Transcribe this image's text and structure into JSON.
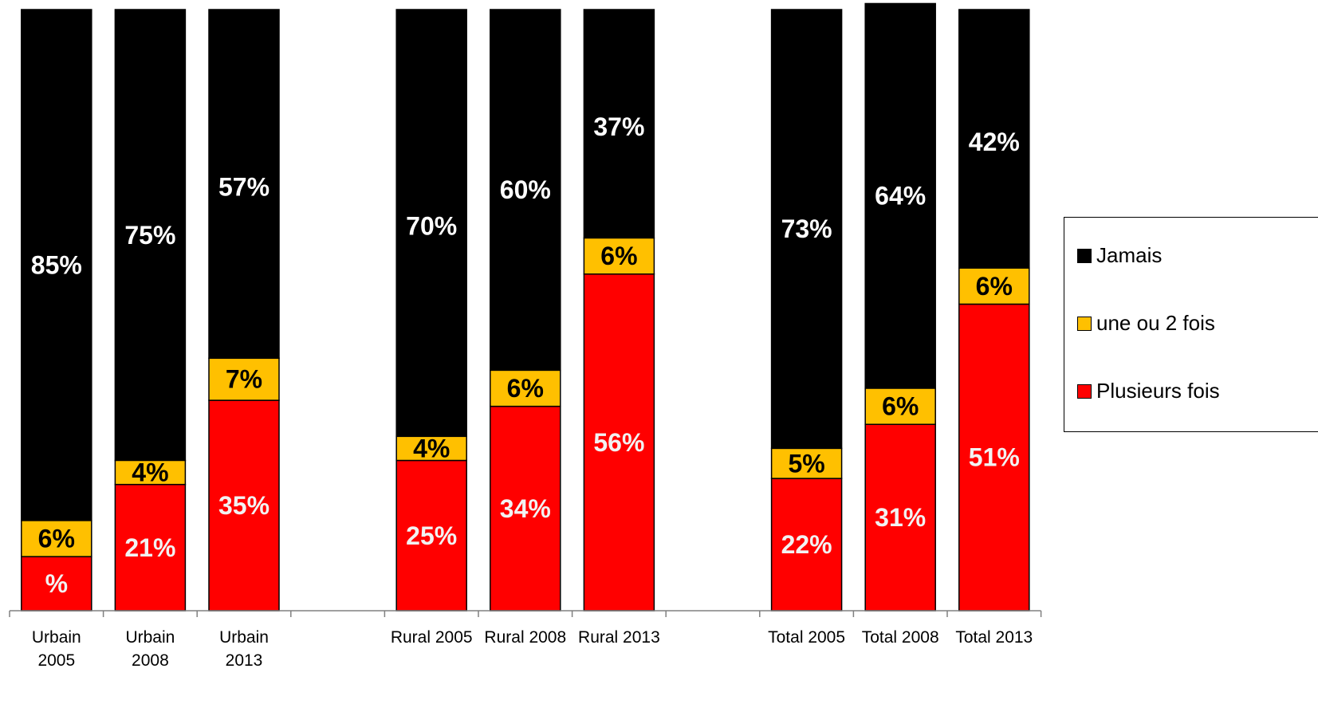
{
  "chart_data": {
    "type": "bar",
    "stacked": true,
    "title": "",
    "xlabel": "",
    "ylabel": "",
    "ylim": [
      0,
      100
    ],
    "grid": false,
    "legend_position": "right",
    "groups": [
      {
        "categories": [
          {
            "label_lines": [
              "Urbain",
              "2005"
            ],
            "values": [
              9,
              6,
              85
            ],
            "labels": [
              "%",
              "6%",
              "85%"
            ]
          },
          {
            "label_lines": [
              "Urbain",
              "2008"
            ],
            "values": [
              21,
              4,
              75
            ],
            "labels": [
              "21%",
              "4%",
              "75%"
            ]
          },
          {
            "label_lines": [
              "Urbain",
              "2013"
            ],
            "values": [
              35,
              7,
              57
            ],
            "labels": [
              "35%",
              "7%",
              "57%"
            ]
          }
        ]
      },
      {
        "categories": [
          {
            "label_lines": [
              "Rural 2005"
            ],
            "values": [
              25,
              4,
              70
            ],
            "labels": [
              "25%",
              "4%",
              "70%"
            ]
          },
          {
            "label_lines": [
              "Rural 2008"
            ],
            "values": [
              34,
              6,
              60
            ],
            "labels": [
              "34%",
              "6%",
              "60%"
            ]
          },
          {
            "label_lines": [
              "Rural 2013"
            ],
            "values": [
              56,
              6,
              37
            ],
            "labels": [
              "56%",
              "6%",
              "37%"
            ]
          }
        ]
      },
      {
        "categories": [
          {
            "label_lines": [
              "Total 2005"
            ],
            "values": [
              22,
              5,
              73
            ],
            "labels": [
              "22%",
              "5%",
              "73%"
            ]
          },
          {
            "label_lines": [
              "Total 2008"
            ],
            "values": [
              31,
              6,
              64
            ],
            "labels": [
              "31%",
              "6%",
              "64%"
            ]
          },
          {
            "label_lines": [
              "Total 2013"
            ],
            "values": [
              51,
              6,
              42
            ],
            "labels": [
              "51%",
              "6%",
              "42%"
            ]
          }
        ]
      }
    ],
    "series": [
      {
        "name": "Plusieurs fois",
        "color": "#ff0000",
        "label_color": "#f2f2f2"
      },
      {
        "name": "une ou 2 fois",
        "color": "#ffc000",
        "label_color": "#000000"
      },
      {
        "name": "Jamais",
        "color": "#000000",
        "label_color": "#ffffff"
      }
    ],
    "legend": [
      "Jamais",
      "une ou 2 fois",
      "Plusieurs fois"
    ]
  }
}
